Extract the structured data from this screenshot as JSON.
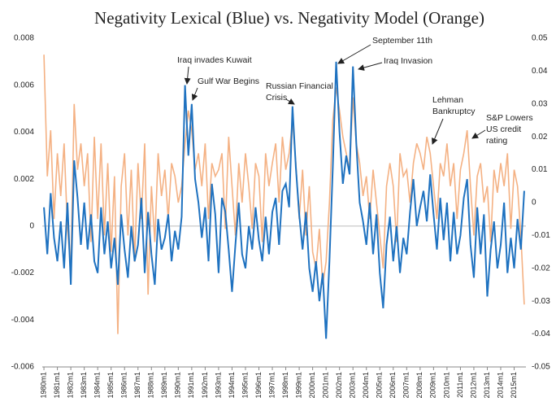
{
  "chart_data": {
    "type": "line",
    "title": "Negativity Lexical (Blue) vs. Negativity Model (Orange)",
    "categories": [
      "1980m1",
      null,
      null,
      null,
      "1981m1",
      null,
      null,
      null,
      "1982m1",
      null,
      null,
      null,
      "1983m1",
      null,
      null,
      null,
      "1984m1",
      null,
      null,
      null,
      "1985m1",
      null,
      null,
      null,
      "1986m1",
      null,
      null,
      null,
      "1987m1",
      null,
      null,
      null,
      "1988m1",
      null,
      null,
      null,
      "1989m1",
      null,
      null,
      null,
      "1990m1",
      null,
      null,
      null,
      "1991m1",
      null,
      null,
      null,
      "1992m1",
      null,
      null,
      null,
      "1993m1",
      null,
      null,
      null,
      "1994m1",
      null,
      null,
      null,
      "1995m1",
      null,
      null,
      null,
      "1996m1",
      null,
      null,
      null,
      "1997m1",
      null,
      null,
      null,
      "1998m1",
      null,
      null,
      null,
      "1999m1",
      null,
      null,
      null,
      "2000m1",
      null,
      null,
      null,
      "2001m1",
      null,
      null,
      null,
      "2002m1",
      null,
      null,
      null,
      "2003m1",
      null,
      null,
      null,
      "2004m1",
      null,
      null,
      null,
      "2005m1",
      null,
      null,
      null,
      "2006m1",
      null,
      null,
      null,
      "2007m1",
      null,
      null,
      null,
      "2008m1",
      null,
      null,
      null,
      "2009m1",
      null,
      null,
      null,
      "2010m1",
      null,
      null,
      null,
      "2011m1",
      null,
      null,
      null,
      "2012m1",
      null,
      null,
      null,
      "2013m1",
      null,
      null,
      null,
      "2014m1",
      null,
      null,
      null,
      "2015m1",
      null,
      null,
      null
    ],
    "series": [
      {
        "color": "#1f72c0",
        "values": [
          0.0008,
          -0.0012,
          0.0014,
          -0.0005,
          -0.0015,
          0.0002,
          -0.0018,
          0.001,
          -0.0025,
          0.0028,
          0.0012,
          -0.0008,
          0.001,
          -0.001,
          0.0005,
          -0.0015,
          -0.002,
          0.0008,
          -0.0012,
          0.0002,
          -0.0018,
          -0.0005,
          -0.0025,
          0.0005,
          -0.001,
          -0.0022,
          0,
          -0.0015,
          -0.0008,
          0.0012,
          -0.002,
          0.0006,
          -0.0012,
          -0.0025,
          0.0003,
          -0.001,
          -0.0005,
          0.0005,
          -0.0015,
          -0.0002,
          -0.001,
          0.0004,
          0.006,
          0.003,
          0.0052,
          0.002,
          0.001,
          -0.0005,
          0.0008,
          -0.0015,
          0.0018,
          0.0005,
          -0.002,
          0.0012,
          0.0006,
          -0.001,
          -0.0028,
          -0.0008,
          0.001,
          -0.0012,
          -0.0018,
          0,
          -0.001,
          0.0008,
          -0.0006,
          -0.0015,
          0.0004,
          -0.0012,
          0.0006,
          0.0012,
          -0.0008,
          0.0015,
          0.0018,
          0.0008,
          0.0051,
          0.0025,
          0.0005,
          -0.001,
          0.0006,
          -0.0018,
          -0.0028,
          -0.0015,
          -0.0032,
          -0.002,
          -0.0048,
          -0.0015,
          0.0025,
          0.007,
          0.004,
          0.0018,
          0.003,
          0.0022,
          0.0068,
          0.0035,
          0.001,
          0.0002,
          -0.0008,
          0.001,
          -0.0012,
          0.0005,
          -0.002,
          -0.0035,
          -0.0008,
          0.0004,
          -0.0015,
          0,
          -0.002,
          -0.0005,
          -0.0012,
          0.0006,
          0.002,
          0,
          0.0008,
          0.0015,
          0.0002,
          0.0022,
          0.0005,
          -0.001,
          0.0012,
          -0.0006,
          0.001,
          -0.0015,
          0.0006,
          -0.0012,
          -0.0004,
          0.0012,
          0.002,
          -0.0008,
          -0.0022,
          0.0008,
          -0.0012,
          0.0005,
          -0.003,
          -0.001,
          0.0002,
          -0.0018,
          -0.0008,
          0.001,
          -0.002,
          -0.0005,
          -0.0018,
          0.0003,
          -0.001,
          0.0015
        ]
      },
      {
        "color": "#f4b183",
        "axis": "y2",
        "values": [
          0.045,
          0.008,
          0.022,
          -0.005,
          0.015,
          0.002,
          0.018,
          -0.008,
          -0.02,
          0.03,
          0.01,
          0.018,
          0.005,
          0.015,
          -0.012,
          0.02,
          -0.005,
          0.018,
          -0.01,
          0.012,
          -0.015,
          0.008,
          -0.04,
          0.005,
          0.015,
          -0.01,
          0.01,
          -0.018,
          0.012,
          -0.005,
          0.018,
          -0.028,
          0.005,
          -0.012,
          0.015,
          0.002,
          0.01,
          -0.005,
          0.012,
          0.008,
          0,
          0.005,
          0.018,
          0.028,
          0.022,
          0.01,
          0.015,
          0.005,
          0.018,
          -0.005,
          0.012,
          0.008,
          0.01,
          0.015,
          -0.008,
          0.02,
          0.005,
          -0.01,
          0.012,
          0,
          0.015,
          0.005,
          -0.008,
          0.012,
          0.008,
          -0.012,
          0.015,
          0.005,
          0.012,
          0.018,
          0,
          0.02,
          0.01,
          0.015,
          0.025,
          0.012,
          -0.005,
          0.01,
          -0.01,
          0.005,
          -0.015,
          -0.02,
          -0.008,
          -0.025,
          -0.018,
          0,
          0.025,
          0.035,
          0.028,
          0.02,
          0.015,
          0.01,
          0.032,
          0.018,
          0.012,
          0.002,
          0.008,
          -0.005,
          0.01,
          0,
          -0.01,
          -0.02,
          0.005,
          0.012,
          0.005,
          -0.012,
          0.015,
          0.008,
          0.01,
          0,
          0.012,
          0.018,
          0.015,
          0.01,
          0.02,
          0.015,
          0.005,
          -0.005,
          0.012,
          0.008,
          0.018,
          0.005,
          0.012,
          -0.005,
          0.01,
          0.015,
          0.022,
          0.005,
          -0.01,
          0.008,
          0.012,
          0,
          0.005,
          -0.012,
          0.01,
          0.003,
          0.012,
          0.005,
          0.015,
          -0.008,
          0.01,
          0.005,
          -0.01,
          -0.031
        ]
      }
    ],
    "ylim": [
      -0.006,
      0.008
    ],
    "yticks": [
      -0.006,
      -0.004,
      -0.002,
      0,
      0.002,
      0.004,
      0.006,
      0.008
    ],
    "y2lim": [
      -0.05,
      0.05
    ],
    "y2ticks": [
      -0.05,
      -0.04,
      -0.03,
      -0.02,
      -0.01,
      0,
      0.01,
      0.02,
      0.03,
      0.04,
      0.05
    ],
    "annotations": [
      {
        "lines": [
          "Iraq invades Kuwait"
        ]
      },
      {
        "lines": [
          "Gulf War Begins"
        ]
      },
      {
        "lines": [
          "Russian Financial",
          "Crisis"
        ]
      },
      {
        "lines": [
          "September 11th"
        ]
      },
      {
        "lines": [
          "Iraq Invasion"
        ]
      },
      {
        "lines": [
          "Lehman",
          "Bankruptcy"
        ]
      },
      {
        "lines": [
          "S&P Lowers",
          "US credit",
          "rating"
        ]
      }
    ]
  }
}
